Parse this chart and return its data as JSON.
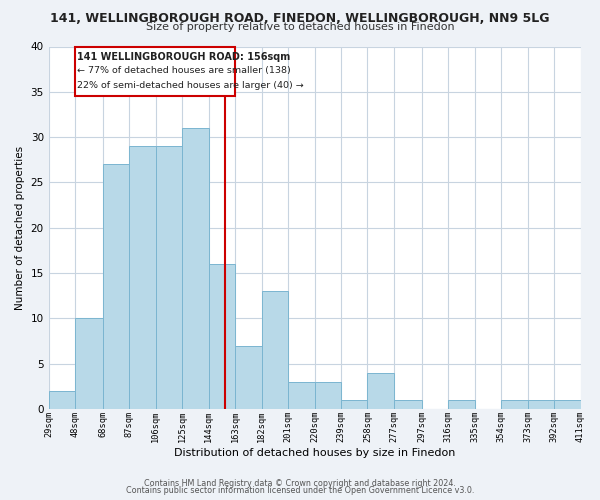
{
  "title": "141, WELLINGBOROUGH ROAD, FINEDON, WELLINGBOROUGH, NN9 5LG",
  "subtitle": "Size of property relative to detached houses in Finedon",
  "xlabel": "Distribution of detached houses by size in Finedon",
  "ylabel": "Number of detached properties",
  "bar_left_edges": [
    29,
    48,
    68,
    87,
    106,
    125,
    144,
    163,
    182,
    201,
    220,
    239,
    258,
    277,
    297,
    316,
    335,
    354,
    373,
    392
  ],
  "bar_heights": [
    2,
    10,
    27,
    29,
    29,
    31,
    16,
    7,
    13,
    3,
    3,
    1,
    4,
    1,
    0,
    1,
    0,
    1,
    1,
    1
  ],
  "bar_widths": [
    19,
    20,
    19,
    19,
    19,
    19,
    19,
    19,
    19,
    19,
    19,
    19,
    19,
    20,
    19,
    19,
    19,
    19,
    19,
    19
  ],
  "tick_labels": [
    "29sqm",
    "48sqm",
    "68sqm",
    "87sqm",
    "106sqm",
    "125sqm",
    "144sqm",
    "163sqm",
    "182sqm",
    "201sqm",
    "220sqm",
    "239sqm",
    "258sqm",
    "277sqm",
    "297sqm",
    "316sqm",
    "335sqm",
    "354sqm",
    "373sqm",
    "392sqm",
    "411sqm"
  ],
  "tick_positions": [
    29,
    48,
    68,
    87,
    106,
    125,
    144,
    163,
    182,
    201,
    220,
    239,
    258,
    277,
    297,
    316,
    335,
    354,
    373,
    392,
    411
  ],
  "bar_color": "#b8d9e8",
  "bar_edge_color": "#7bb5d0",
  "vline_x": 156,
  "vline_color": "#cc0000",
  "ylim": [
    0,
    40
  ],
  "yticks": [
    0,
    5,
    10,
    15,
    20,
    25,
    30,
    35,
    40
  ],
  "annotation_title": "141 WELLINGBOROUGH ROAD: 156sqm",
  "annotation_line1": "← 77% of detached houses are smaller (138)",
  "annotation_line2": "22% of semi-detached houses are larger (40) →",
  "footer_line1": "Contains HM Land Registry data © Crown copyright and database right 2024.",
  "footer_line2": "Contains public sector information licensed under the Open Government Licence v3.0.",
  "bg_color": "#eef2f7",
  "plot_bg_color": "#ffffff",
  "grid_color": "#c8d4e0"
}
